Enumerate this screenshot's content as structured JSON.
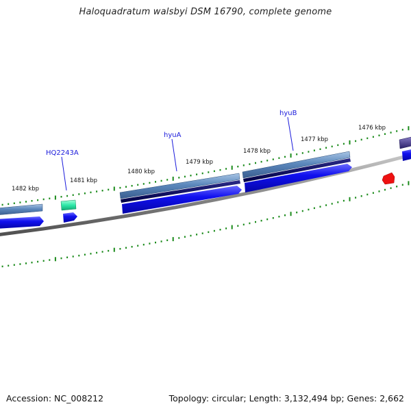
{
  "title": "Haloquadratum walsbyi DSM 16790, complete genome",
  "footer": {
    "accession": "Accession: NC_008212",
    "summary": "Topology: circular; Length: 3,132,494 bp; Genes: 2,662"
  },
  "ticks": [
    "1482 kbp",
    "1481 kbp",
    "1480 kbp",
    "1479 kbp",
    "1478 kbp",
    "1477 kbp",
    "1476 kbp"
  ],
  "genes": [
    {
      "label": "HQ2243A",
      "color": "#2ee8a8"
    },
    {
      "label": "hyuA",
      "color": "#4a7ab8"
    },
    {
      "label": "hyuB",
      "color": "#4a7ab8"
    }
  ],
  "colors": {
    "cds_forward": "#1010ee",
    "cds_dark": "#000066",
    "gene_steel": "#4a7ab8",
    "gene_rna": "#2ee8a8",
    "gene_purple": "#3a2e80",
    "gene_red": "#ee1111",
    "ticks": "#1a8a1a",
    "backbone": "#8a8a8a"
  }
}
